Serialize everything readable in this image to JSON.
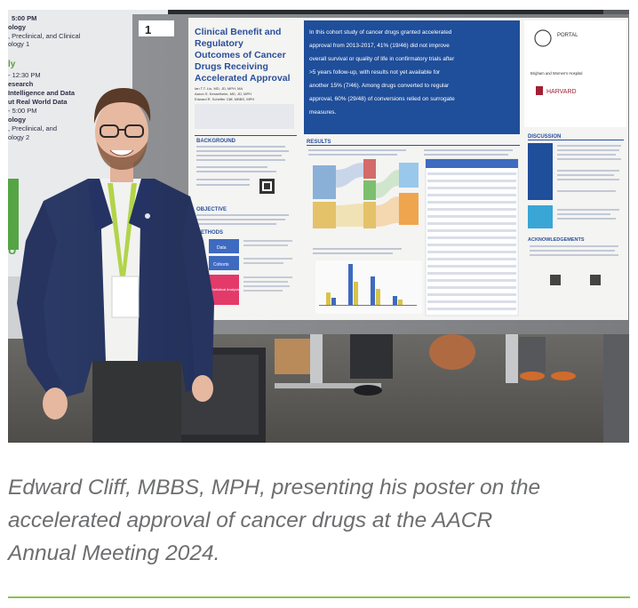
{
  "photo": {
    "description_icon": "photo-poster-presentation",
    "poster": {
      "panel_number": "1",
      "title_lines": [
        "Clinical Benefit and",
        "Regulatory",
        "Outcomes of Cancer",
        "Drugs Receiving",
        "Accelerated Approval"
      ],
      "authors": [
        "Ian T.T. Liu, MD, JD, MPH, MA",
        "Aaron S. Kesselheim, MD, JD, MPH",
        "Edward R. Scheffer Cliff, MBBS, MPH"
      ],
      "key_finding_lines": [
        "In this cohort study of cancer drugs granted accelerated",
        "approval from 2013-2017, 41% (19/46) did not improve",
        "overall survival or quality of life in confirmatory trials after",
        ">5 years follow-up, with results not yet available for",
        "another 15% (7/46). Among drugs converted to regular",
        "approval, 60% (29/48) of conversions relied on surrogate",
        "measures."
      ],
      "sections": {
        "background": "BACKGROUND",
        "objective": "OBJECTIVE",
        "methods": "METHODS",
        "results": "RESULTS",
        "discussion": "DISCUSSION",
        "acknowledgements": "ACKNOWLEDGEMENTS"
      },
      "method_boxes": [
        "Data",
        "Cohorts",
        "Statistical Analysis"
      ],
      "logos": {
        "portal": "PORTAL",
        "brigham": "Brigham and Women's Hospital",
        "harvard": "HARVARD"
      }
    },
    "backdrop_text": [
      "5:00 PM",
      "ology",
      ", Preclinical, and Clinical",
      "ology 1",
      "ly",
      "- 12:30 PM",
      "esearch",
      "Intelligence and Data",
      "ut Real World Data",
      "- 5:00 PM",
      "ology",
      ", Preclinical, and",
      "ology 2",
      "R",
      "U"
    ]
  },
  "caption": {
    "line1": "Edward Cliff, MBBS, MPH, presenting his poster on the",
    "line2": "accelerated approval of cancer drugs at the AACR",
    "line3": "Annual Meeting 2024."
  },
  "colors": {
    "caption_text": "#6d6e70",
    "divider": "#8cc152",
    "poster_blue": "#1f4e9a",
    "method_pink": "#e33a6a",
    "method_blue": "#3e6ac0"
  }
}
